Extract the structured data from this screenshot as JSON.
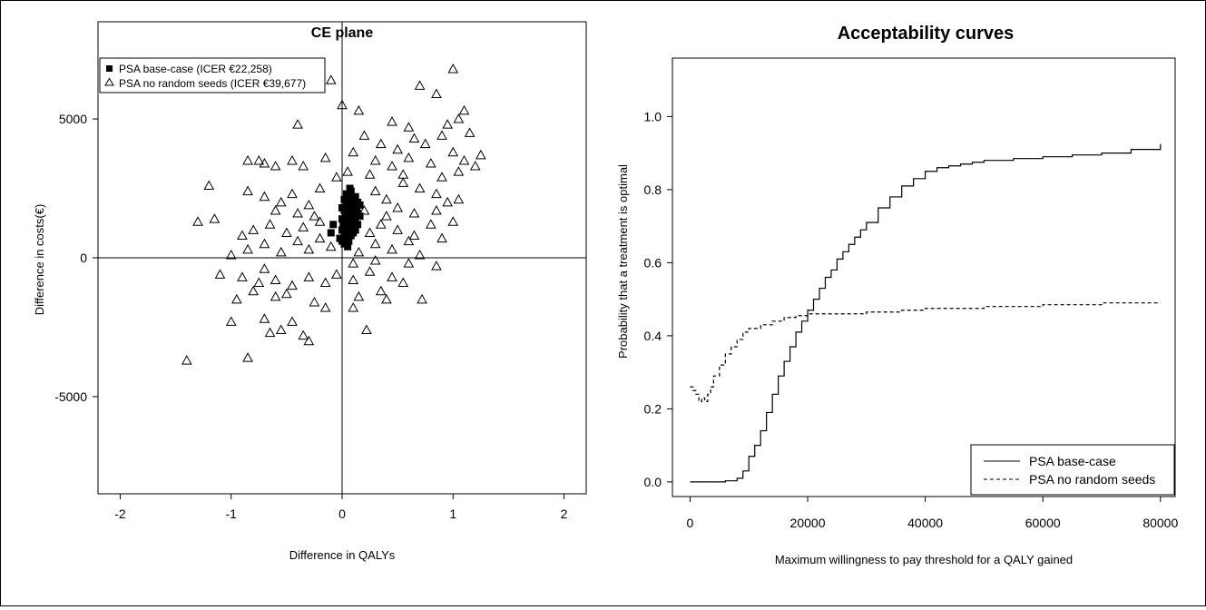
{
  "chart_data": [
    {
      "type": "scatter",
      "title": "CE plane",
      "xlabel": "Difference in QALYs",
      "ylabel": "Difference in costs(€)",
      "xlim": [
        -2.2,
        2.2
      ],
      "ylim": [
        -8500,
        8500
      ],
      "xticks": [
        -2,
        -1,
        0,
        1,
        2
      ],
      "yticks": [
        -5000,
        0,
        5000
      ],
      "x_tick_labels": [
        "-2",
        "-1",
        "0",
        "1",
        "2"
      ],
      "y_tick_labels": [
        "-5000",
        "0",
        "5000"
      ],
      "reference_lines": {
        "x": 0,
        "y": 0
      },
      "legend_position": "top-left",
      "legend": [
        {
          "label": "PSA base-case (ICER €22,258)",
          "marker": "filled-square"
        },
        {
          "label": "PSA no random seeds (ICER €39,677)",
          "marker": "open-triangle"
        }
      ],
      "series": [
        {
          "name": "PSA base-case (ICER €22,258)",
          "marker": "filled-square",
          "points": [
            [
              -0.1,
              900
            ],
            [
              -0.08,
              1200
            ],
            [
              0.0,
              600
            ],
            [
              0.0,
              1000
            ],
            [
              0.0,
              1400
            ],
            [
              0.0,
              1800
            ],
            [
              0.02,
              500
            ],
            [
              0.02,
              900
            ],
            [
              0.02,
              1300
            ],
            [
              0.02,
              1700
            ],
            [
              0.02,
              2100
            ],
            [
              0.04,
              700
            ],
            [
              0.04,
              1100
            ],
            [
              0.04,
              1500
            ],
            [
              0.04,
              1900
            ],
            [
              0.04,
              2300
            ],
            [
              0.06,
              600
            ],
            [
              0.06,
              1000
            ],
            [
              0.06,
              1400
            ],
            [
              0.06,
              1800
            ],
            [
              0.06,
              2200
            ],
            [
              0.08,
              800
            ],
            [
              0.08,
              1200
            ],
            [
              0.08,
              1600
            ],
            [
              0.08,
              2000
            ],
            [
              0.08,
              2400
            ],
            [
              0.1,
              900
            ],
            [
              0.1,
              1300
            ],
            [
              0.1,
              1700
            ],
            [
              0.1,
              2100
            ],
            [
              0.12,
              1000
            ],
            [
              0.12,
              1400
            ],
            [
              0.12,
              1800
            ],
            [
              0.12,
              2200
            ],
            [
              0.14,
              1200
            ],
            [
              0.14,
              1600
            ],
            [
              0.14,
              2000
            ],
            [
              0.16,
              1500
            ],
            [
              0.16,
              1900
            ],
            [
              0.05,
              400
            ],
            [
              0.07,
              2500
            ],
            [
              0.03,
              1600
            ],
            [
              0.09,
              1500
            ],
            [
              0.11,
              1100
            ],
            [
              0.01,
              1200
            ],
            [
              -0.02,
              700
            ],
            [
              0.13,
              1700
            ]
          ]
        },
        {
          "name": "PSA no random seeds (ICER €39,677)",
          "marker": "open-triangle",
          "points": [
            [
              -1.4,
              -3700
            ],
            [
              -0.85,
              -3600
            ],
            [
              -0.3,
              -3000
            ],
            [
              -0.35,
              -2800
            ],
            [
              -0.55,
              -2600
            ],
            [
              -0.65,
              -2700
            ],
            [
              -1.0,
              -2300
            ],
            [
              -0.7,
              -2200
            ],
            [
              -0.45,
              -2300
            ],
            [
              0.22,
              -2600
            ],
            [
              0.72,
              -1500
            ],
            [
              -0.15,
              -1800
            ],
            [
              0.1,
              -1800
            ],
            [
              0.4,
              -1500
            ],
            [
              -0.25,
              -1600
            ],
            [
              -0.6,
              -1400
            ],
            [
              -0.8,
              -1200
            ],
            [
              -0.95,
              -1500
            ],
            [
              -0.5,
              -1300
            ],
            [
              0.15,
              -1400
            ],
            [
              0.35,
              -1200
            ],
            [
              -1.1,
              -600
            ],
            [
              -0.9,
              -700
            ],
            [
              -0.75,
              -900
            ],
            [
              -0.6,
              -800
            ],
            [
              -0.45,
              -1000
            ],
            [
              -0.3,
              -700
            ],
            [
              -0.15,
              -900
            ],
            [
              -0.05,
              -600
            ],
            [
              0.1,
              -800
            ],
            [
              0.25,
              -500
            ],
            [
              0.45,
              -700
            ],
            [
              0.55,
              -900
            ],
            [
              -1.0,
              100
            ],
            [
              -0.85,
              300
            ],
            [
              -0.7,
              500
            ],
            [
              -0.55,
              200
            ],
            [
              -0.4,
              600
            ],
            [
              -0.3,
              300
            ],
            [
              -0.2,
              700
            ],
            [
              -0.1,
              400
            ],
            [
              0.15,
              200
            ],
            [
              0.3,
              500
            ],
            [
              0.45,
              300
            ],
            [
              0.6,
              600
            ],
            [
              0.7,
              100
            ],
            [
              0.85,
              -300
            ],
            [
              -1.3,
              1300
            ],
            [
              -1.15,
              1400
            ],
            [
              -0.9,
              800
            ],
            [
              -0.8,
              1000
            ],
            [
              -0.65,
              1200
            ],
            [
              -0.5,
              900
            ],
            [
              -0.35,
              1100
            ],
            [
              -0.2,
              1300
            ],
            [
              0.25,
              900
            ],
            [
              0.35,
              1200
            ],
            [
              0.5,
              1000
            ],
            [
              0.65,
              800
            ],
            [
              0.8,
              1200
            ],
            [
              1.0,
              1300
            ],
            [
              -1.2,
              2600
            ],
            [
              -0.85,
              2400
            ],
            [
              -0.7,
              2200
            ],
            [
              -0.55,
              2000
            ],
            [
              -0.45,
              2300
            ],
            [
              -0.3,
              1900
            ],
            [
              -0.2,
              2500
            ],
            [
              0.3,
              2400
            ],
            [
              0.4,
              2100
            ],
            [
              0.55,
              2700
            ],
            [
              0.7,
              2500
            ],
            [
              0.85,
              2300
            ],
            [
              0.95,
              2000
            ],
            [
              1.05,
              2100
            ],
            [
              -0.85,
              3500
            ],
            [
              -0.75,
              3500
            ],
            [
              -0.7,
              3400
            ],
            [
              -0.6,
              3300
            ],
            [
              -0.45,
              3500
            ],
            [
              -0.35,
              3300
            ],
            [
              -0.15,
              3600
            ],
            [
              0.1,
              3800
            ],
            [
              0.3,
              3500
            ],
            [
              0.45,
              3300
            ],
            [
              0.6,
              3600
            ],
            [
              0.8,
              3400
            ],
            [
              1.0,
              3800
            ],
            [
              1.1,
              3500
            ],
            [
              1.25,
              3700
            ],
            [
              -0.1,
              6400
            ],
            [
              0.0,
              5500
            ],
            [
              0.15,
              5300
            ],
            [
              -0.4,
              4800
            ],
            [
              0.45,
              4900
            ],
            [
              0.6,
              4700
            ],
            [
              0.7,
              6200
            ],
            [
              0.85,
              5900
            ],
            [
              0.95,
              4800
            ],
            [
              1.05,
              5000
            ],
            [
              1.1,
              5300
            ],
            [
              1.0,
              6800
            ],
            [
              0.2,
              4400
            ],
            [
              0.35,
              4100
            ],
            [
              0.65,
              4300
            ],
            [
              0.9,
              4400
            ],
            [
              1.15,
              4500
            ],
            [
              0.5,
              3900
            ],
            [
              0.75,
              4100
            ],
            [
              0.25,
              3000
            ],
            [
              0.05,
              3100
            ],
            [
              -0.05,
              2900
            ],
            [
              0.55,
              3000
            ],
            [
              0.9,
              2900
            ],
            [
              1.05,
              3100
            ],
            [
              1.2,
              3300
            ],
            [
              0.2,
              1700
            ],
            [
              0.5,
              1800
            ],
            [
              0.65,
              1600
            ],
            [
              0.85,
              1700
            ],
            [
              0.4,
              1500
            ],
            [
              -0.25,
              1500
            ],
            [
              -0.4,
              1600
            ],
            [
              -0.6,
              1700
            ],
            [
              0.9,
              700
            ],
            [
              0.1,
              -200
            ],
            [
              -0.7,
              -400
            ],
            [
              0.6,
              -200
            ],
            [
              0.3,
              -100
            ]
          ]
        }
      ]
    },
    {
      "type": "line",
      "title": "Acceptability curves",
      "xlabel": "Maximum willingness to pay threshold for a QALY gained",
      "ylabel": "Probability that a treatment is optimal",
      "xlim": [
        -3000,
        82500
      ],
      "ylim": [
        -0.04,
        1.16
      ],
      "xticks": [
        0,
        20000,
        40000,
        60000,
        80000
      ],
      "yticks": [
        0.0,
        0.2,
        0.4,
        0.6,
        0.8,
        1.0
      ],
      "x_tick_labels": [
        "0",
        "20000",
        "40000",
        "60000",
        "80000"
      ],
      "y_tick_labels": [
        "0.0",
        "0.2",
        "0.4",
        "0.6",
        "0.8",
        "1.0"
      ],
      "legend_position": "bottom-right",
      "legend": [
        {
          "label": "PSA base-case",
          "linestyle": "solid"
        },
        {
          "label": "PSA no random seeds",
          "linestyle": "dashed"
        }
      ],
      "series": [
        {
          "name": "PSA base-case",
          "linestyle": "solid",
          "x": [
            0,
            2000,
            4000,
            6000,
            8000,
            9000,
            10000,
            11000,
            12000,
            13000,
            14000,
            15000,
            16000,
            17000,
            18000,
            19000,
            20000,
            21000,
            22000,
            23000,
            24000,
            25000,
            26000,
            27000,
            28000,
            29000,
            30000,
            32000,
            34000,
            36000,
            38000,
            40000,
            42000,
            44000,
            46000,
            48000,
            50000,
            55000,
            60000,
            65000,
            70000,
            75000,
            80000
          ],
          "values": [
            0.0,
            0.0,
            0.0,
            0.003,
            0.01,
            0.03,
            0.07,
            0.1,
            0.14,
            0.19,
            0.24,
            0.29,
            0.33,
            0.37,
            0.41,
            0.44,
            0.47,
            0.5,
            0.53,
            0.56,
            0.58,
            0.61,
            0.63,
            0.65,
            0.67,
            0.69,
            0.71,
            0.75,
            0.78,
            0.81,
            0.83,
            0.85,
            0.86,
            0.865,
            0.87,
            0.875,
            0.88,
            0.885,
            0.89,
            0.895,
            0.9,
            0.91,
            0.925
          ]
        },
        {
          "name": "PSA no random seeds",
          "linestyle": "dashed",
          "x": [
            0,
            500,
            1000,
            1500,
            2000,
            2500,
            3000,
            3500,
            4000,
            5000,
            6000,
            7000,
            8000,
            9000,
            10000,
            12000,
            14000,
            16000,
            18000,
            20000,
            24000,
            30000,
            36000,
            40000,
            50000,
            60000,
            70000,
            80000
          ],
          "values": [
            0.26,
            0.25,
            0.24,
            0.22,
            0.23,
            0.22,
            0.24,
            0.26,
            0.29,
            0.32,
            0.35,
            0.37,
            0.39,
            0.41,
            0.42,
            0.43,
            0.44,
            0.45,
            0.455,
            0.46,
            0.46,
            0.465,
            0.47,
            0.475,
            0.48,
            0.485,
            0.49,
            0.49
          ]
        }
      ]
    }
  ]
}
